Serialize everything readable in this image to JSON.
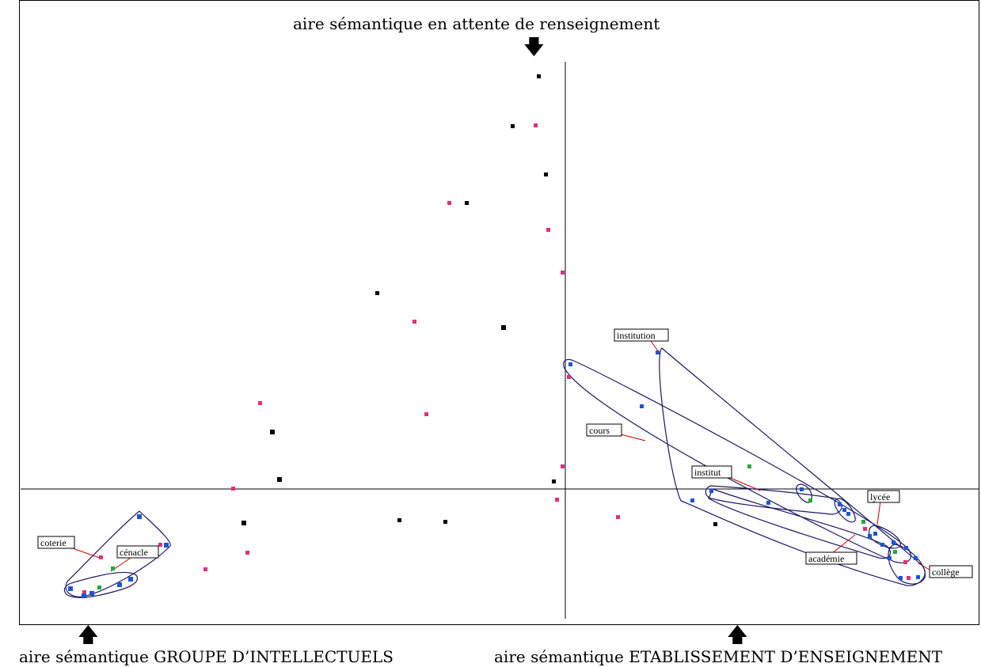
{
  "annotations": {
    "top": "aire sémantique en attente de renseignement",
    "bottom_left": "aire sémantique GROUPE D’INTELLECTUELS",
    "bottom_right": "aire sémantique ETABLISSEMENT D’ENSEIGNEMENT"
  },
  "arrows": {
    "down": "🡇",
    "up": "🡅"
  },
  "colors": {
    "axis": "#000000",
    "hull": "#1a1a66",
    "leader": "#cc0000",
    "black": "#000000",
    "pink": "#e0307a",
    "blue": "#1a55d6",
    "green": "#22aa33"
  },
  "labels": [
    "coterie",
    "cénacle",
    "institution",
    "cours",
    "institut",
    "lycée",
    "académie",
    "collège"
  ]
}
